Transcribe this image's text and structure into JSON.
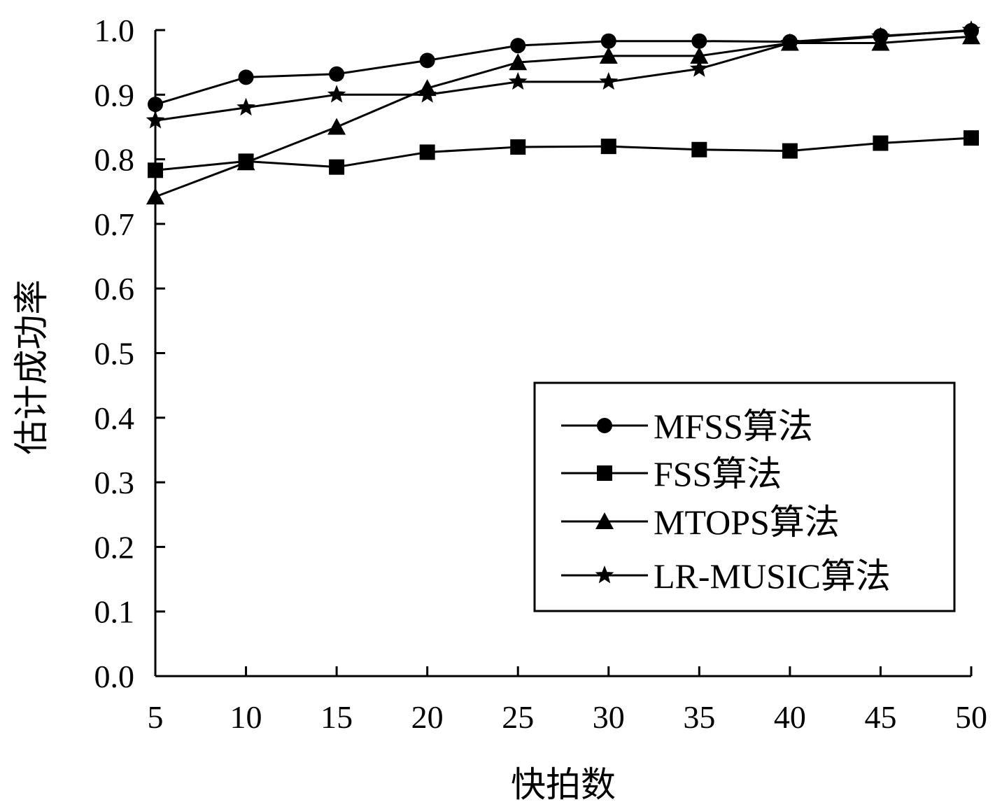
{
  "chart_data": {
    "type": "line",
    "xlabel": "快拍数",
    "ylabel": "估计成功率",
    "x": [
      5,
      10,
      15,
      20,
      25,
      30,
      35,
      40,
      45,
      50
    ],
    "xlim": [
      5,
      50
    ],
    "ylim": [
      0.0,
      1.0
    ],
    "x_ticks": [
      "5",
      "10",
      "15",
      "20",
      "25",
      "30",
      "35",
      "40",
      "45",
      "50"
    ],
    "y_ticks": [
      "0.0",
      "0.1",
      "0.2",
      "0.3",
      "0.4",
      "0.5",
      "0.6",
      "0.7",
      "0.8",
      "0.9",
      "1.0"
    ],
    "grid": false,
    "legend_position": "bottom-right",
    "series": [
      {
        "name": "MFSS算法",
        "marker": "circle",
        "color": "#000000",
        "values": [
          0.885,
          0.927,
          0.932,
          0.953,
          0.976,
          0.983,
          0.983,
          0.982,
          0.991,
          0.999
        ]
      },
      {
        "name": "FSS算法",
        "marker": "square",
        "color": "#000000",
        "values": [
          0.783,
          0.797,
          0.788,
          0.811,
          0.819,
          0.82,
          0.815,
          0.813,
          0.825,
          0.833
        ]
      },
      {
        "name": "MTOPS算法",
        "marker": "triangle",
        "color": "#000000",
        "values": [
          0.742,
          0.795,
          0.85,
          0.91,
          0.95,
          0.96,
          0.96,
          0.98,
          0.98,
          0.99
        ]
      },
      {
        "name": "LR-MUSIC算法",
        "marker": "star",
        "color": "#000000",
        "values": [
          0.86,
          0.88,
          0.9,
          0.9,
          0.92,
          0.92,
          0.94,
          0.98,
          0.99,
          1.0
        ]
      }
    ]
  }
}
